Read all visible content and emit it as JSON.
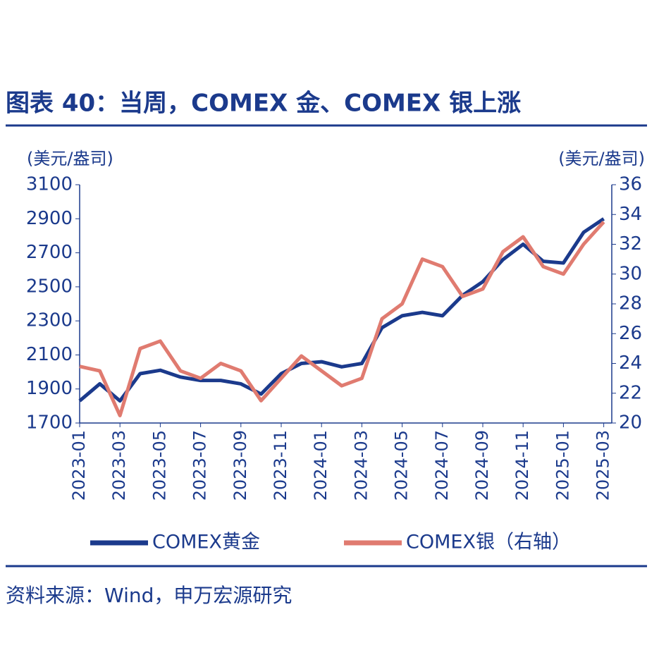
{
  "chart_data": {
    "type": "line",
    "title": "图表 40：当周，COMEX 金、COMEX 银上涨",
    "ylabel": "(美元/盎司)",
    "y2label": "(美元/盎司)",
    "source": "资料来源：Wind，申万宏源研究",
    "categories": [
      "2023-01",
      null,
      "2023-03",
      null,
      "2023-05",
      null,
      "2023-07",
      null,
      "2023-09",
      null,
      "2023-11",
      null,
      "2024-01",
      null,
      "2024-03",
      null,
      "2024-05",
      null,
      "2024-07",
      null,
      "2024-09",
      null,
      "2024-11",
      null,
      "2025-01",
      null,
      "2025-03"
    ],
    "series": [
      {
        "name": "COMEX黄金",
        "color": "#1b3a8c",
        "axis": "y",
        "values": [
          1830,
          1930,
          1830,
          1990,
          2010,
          1970,
          1950,
          1950,
          1930,
          1870,
          1990,
          2050,
          2060,
          2030,
          2050,
          2260,
          2330,
          2350,
          2330,
          2450,
          2530,
          2660,
          2750,
          2650,
          2640,
          2820,
          2900
        ]
      },
      {
        "name": "COMEX银（右轴）",
        "color": "#e07b70",
        "axis": "y2",
        "values": [
          23.8,
          23.5,
          20.5,
          25.0,
          25.5,
          23.5,
          23.0,
          24.0,
          23.5,
          21.5,
          23.0,
          24.5,
          23.5,
          22.5,
          23.0,
          27.0,
          28.0,
          31.0,
          30.5,
          28.5,
          29.0,
          31.5,
          32.5,
          30.5,
          30.0,
          32.0,
          33.5
        ]
      }
    ],
    "ylim": [
      1700,
      3100
    ],
    "yticks": [
      1700,
      1900,
      2100,
      2300,
      2500,
      2700,
      2900,
      3100
    ],
    "y2lim": [
      20,
      36
    ],
    "y2ticks": [
      20,
      22,
      24,
      26,
      28,
      30,
      32,
      34,
      36
    ]
  }
}
